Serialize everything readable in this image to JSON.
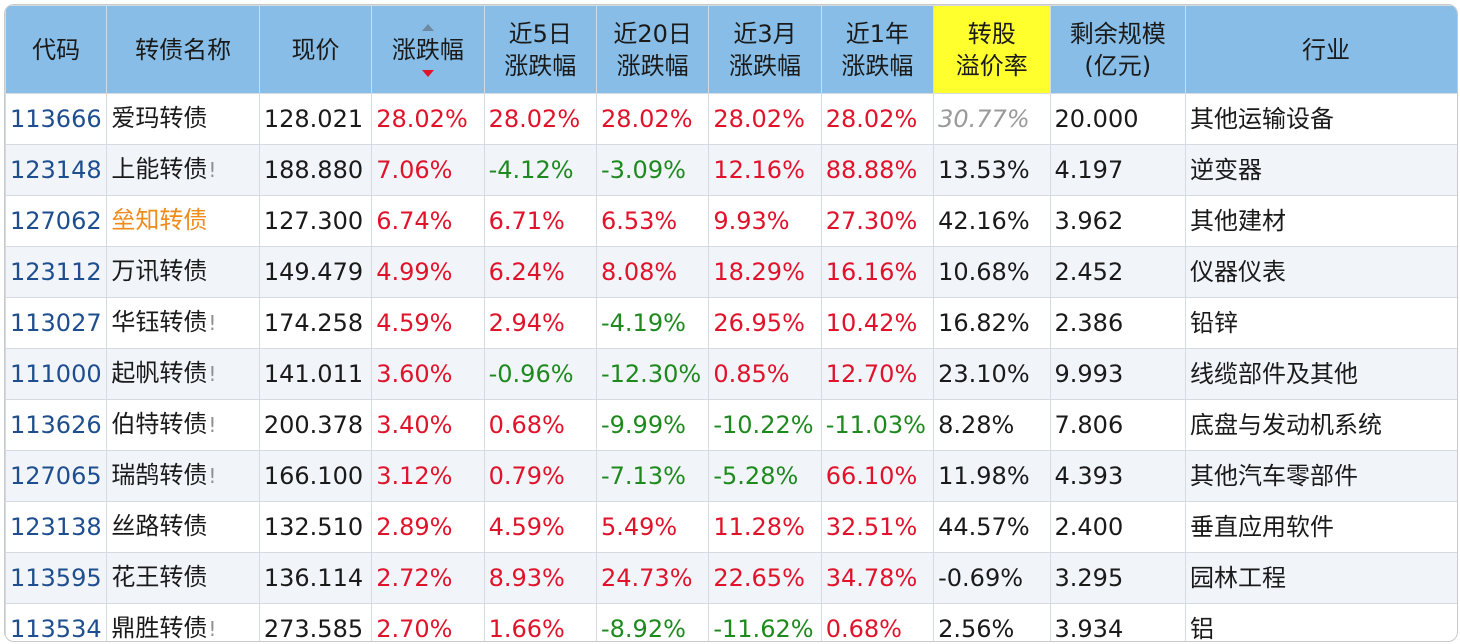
{
  "table": {
    "headers": [
      {
        "line1": "代码",
        "line2": ""
      },
      {
        "line1": "转债名称",
        "line2": ""
      },
      {
        "line1": "现价",
        "line2": ""
      },
      {
        "line1": "涨跌幅",
        "line2": ""
      },
      {
        "line1": "近5日",
        "line2": "涨跌幅"
      },
      {
        "line1": "近20日",
        "line2": "涨跌幅"
      },
      {
        "line1": "近3月",
        "line2": "涨跌幅"
      },
      {
        "line1": "近1年",
        "line2": "涨跌幅"
      },
      {
        "line1": "转股",
        "line2": "溢价率"
      },
      {
        "line1": "剩余规模",
        "line2": "(亿元)"
      },
      {
        "line1": "行业",
        "line2": ""
      }
    ],
    "sort_column": "涨跌幅",
    "sort_direction": "descending",
    "rows": [
      {
        "code": "113666",
        "name": "爱玛转债",
        "flag": "",
        "price": "128.021",
        "chg": "28.02%",
        "chg5": "28.02%",
        "chg20": "28.02%",
        "chg3m": "28.02%",
        "chg1y": "28.02%",
        "premium": "30.77%",
        "scale": "20.000",
        "industry": "其他运输设备"
      },
      {
        "code": "123148",
        "name": "上能转债",
        "flag": "!",
        "price": "188.880",
        "chg": "7.06%",
        "chg5": "-4.12%",
        "chg20": "-3.09%",
        "chg3m": "12.16%",
        "chg1y": "88.88%",
        "premium": "13.53%",
        "scale": "4.197",
        "industry": "逆变器"
      },
      {
        "code": "127062",
        "name": "垒知转债",
        "flag": "",
        "price": "127.300",
        "chg": "6.74%",
        "chg5": "6.71%",
        "chg20": "6.53%",
        "chg3m": "9.93%",
        "chg1y": "27.30%",
        "premium": "42.16%",
        "scale": "3.962",
        "industry": "其他建材"
      },
      {
        "code": "123112",
        "name": "万讯转债",
        "flag": "",
        "price": "149.479",
        "chg": "4.99%",
        "chg5": "6.24%",
        "chg20": "8.08%",
        "chg3m": "18.29%",
        "chg1y": "16.16%",
        "premium": "10.68%",
        "scale": "2.452",
        "industry": "仪器仪表"
      },
      {
        "code": "113027",
        "name": "华钰转债",
        "flag": "!",
        "price": "174.258",
        "chg": "4.59%",
        "chg5": "2.94%",
        "chg20": "-4.19%",
        "chg3m": "26.95%",
        "chg1y": "10.42%",
        "premium": "16.82%",
        "scale": "2.386",
        "industry": "铅锌"
      },
      {
        "code": "111000",
        "name": "起帆转债",
        "flag": "!",
        "price": "141.011",
        "chg": "3.60%",
        "chg5": "-0.96%",
        "chg20": "-12.30%",
        "chg3m": "0.85%",
        "chg1y": "12.70%",
        "premium": "23.10%",
        "scale": "9.993",
        "industry": "线缆部件及其他"
      },
      {
        "code": "113626",
        "name": "伯特转债",
        "flag": "!",
        "price": "200.378",
        "chg": "3.40%",
        "chg5": "0.68%",
        "chg20": "-9.99%",
        "chg3m": "-10.22%",
        "chg1y": "-11.03%",
        "premium": "8.28%",
        "scale": "7.806",
        "industry": "底盘与发动机系统"
      },
      {
        "code": "127065",
        "name": "瑞鹄转债",
        "flag": "!",
        "price": "166.100",
        "chg": "3.12%",
        "chg5": "0.79%",
        "chg20": "-7.13%",
        "chg3m": "-5.28%",
        "chg1y": "66.10%",
        "premium": "11.98%",
        "scale": "4.393",
        "industry": "其他汽车零部件"
      },
      {
        "code": "123138",
        "name": "丝路转债",
        "flag": "",
        "price": "132.510",
        "chg": "2.89%",
        "chg5": "4.59%",
        "chg20": "5.49%",
        "chg3m": "11.28%",
        "chg1y": "32.51%",
        "premium": "44.57%",
        "scale": "2.400",
        "industry": "垂直应用软件"
      },
      {
        "code": "113595",
        "name": "花王转债",
        "flag": "",
        "price": "136.114",
        "chg": "2.72%",
        "chg5": "8.93%",
        "chg20": "24.73%",
        "chg3m": "22.65%",
        "chg1y": "34.78%",
        "premium": "-0.69%",
        "scale": "3.295",
        "industry": "园林工程"
      },
      {
        "code": "113534",
        "name": "鼎胜转债",
        "flag": "!",
        "price": "273.585",
        "chg": "2.70%",
        "chg5": "1.66%",
        "chg20": "-8.92%",
        "chg3m": "-11.62%",
        "chg1y": "0.68%",
        "premium": "2.56%",
        "scale": "3.934",
        "industry": "铝"
      }
    ]
  },
  "colors": {
    "header_bg": "#87bde6",
    "highlight_header_bg": "#ffff2e",
    "up": "#e0132b",
    "down": "#1e8a1e",
    "code": "#1f4e8f",
    "highlight_name": "#f08a1a"
  }
}
